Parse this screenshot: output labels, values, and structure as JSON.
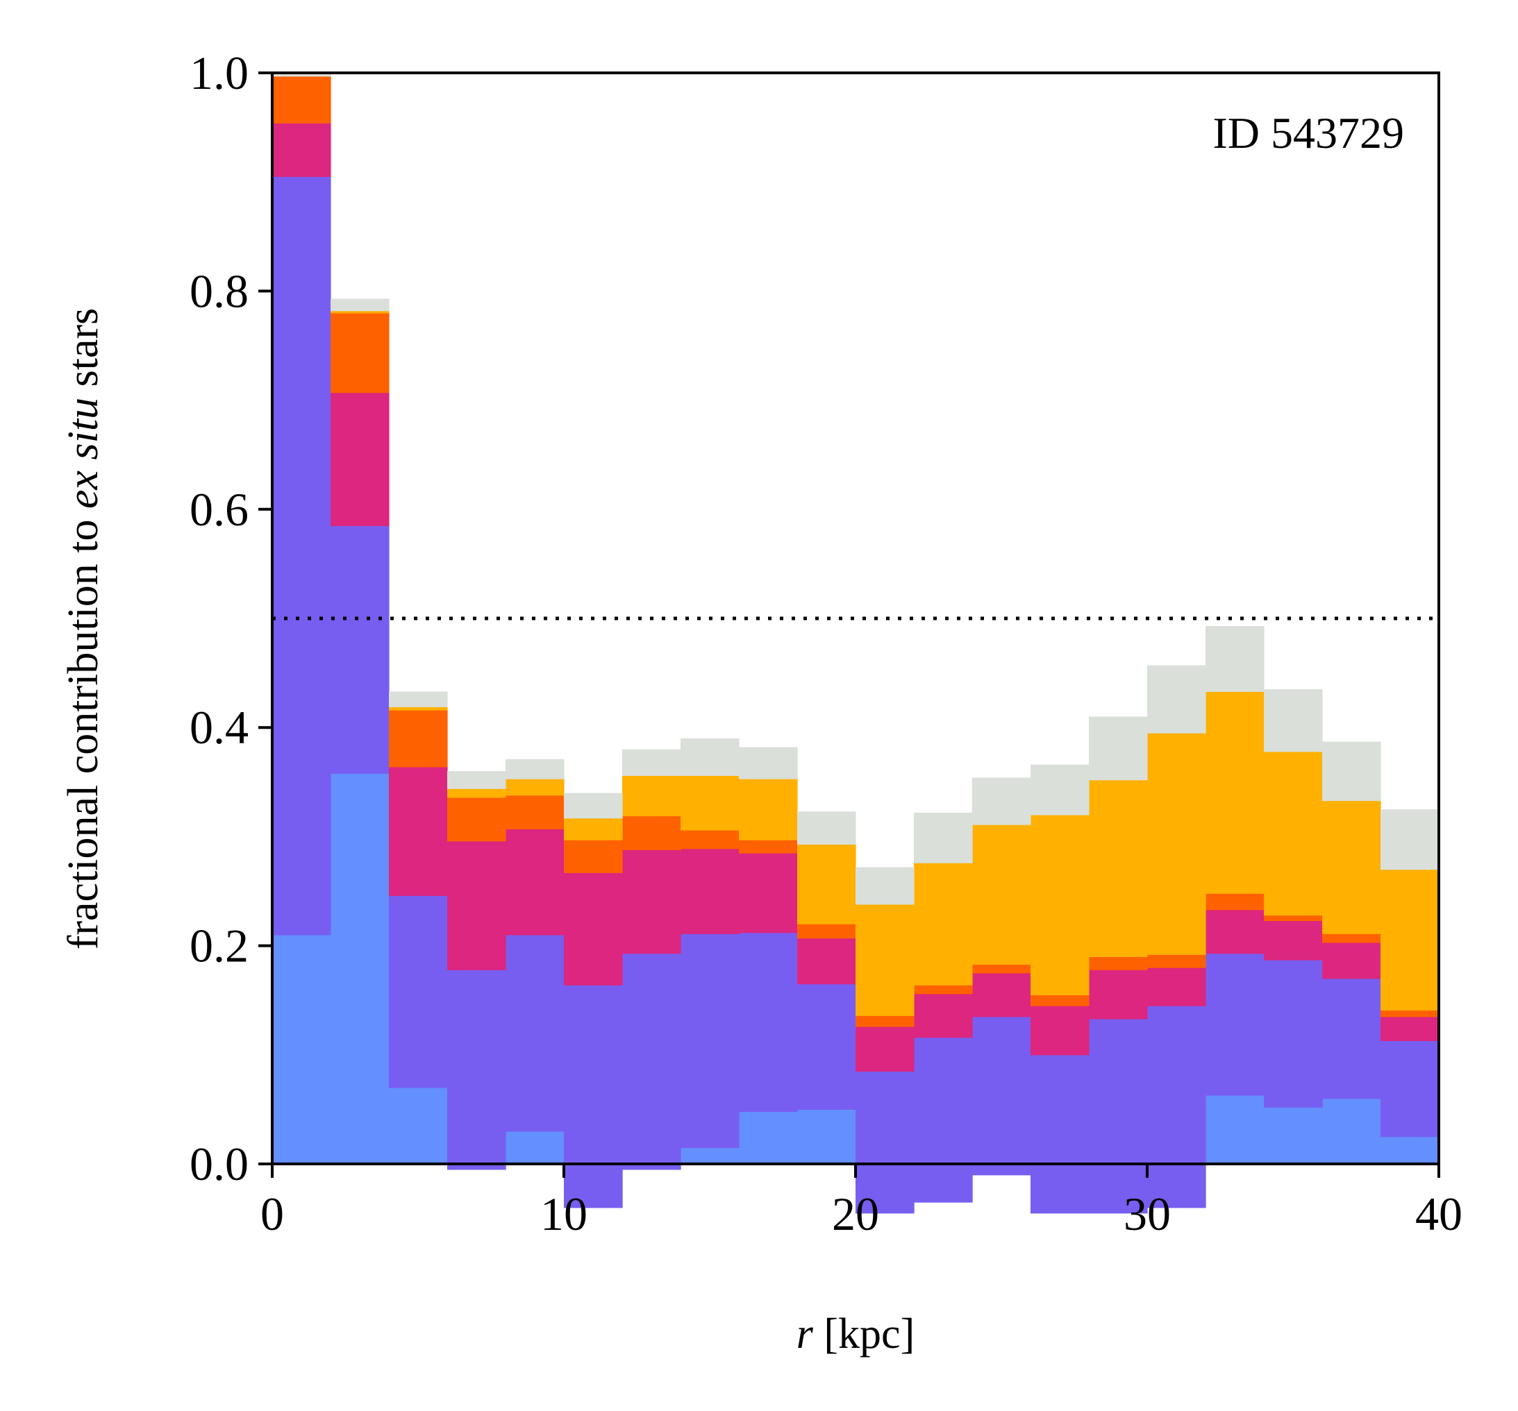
{
  "chart_data": {
    "type": "area",
    "stacking": "stacked-steps",
    "xlabel": {
      "italic": "r",
      "plain": " [kpc]"
    },
    "ylabel": {
      "before": "fractional contribution to ",
      "italic": "ex situ",
      "after": " stars"
    },
    "annotation": "ID 543729",
    "xlim": [
      0,
      40
    ],
    "ylim": [
      0,
      1.0
    ],
    "xticks": [
      "0",
      "10",
      "20",
      "30",
      "40"
    ],
    "yticks": [
      "0.0",
      "0.2",
      "0.4",
      "0.6",
      "0.8",
      "1.0"
    ],
    "reference_line": {
      "y": 0.5,
      "style": "dotted",
      "color": "#000000"
    },
    "bin_edges": [
      0,
      2,
      4,
      6,
      8,
      10,
      12,
      14,
      16,
      18,
      20,
      22,
      24,
      26,
      28,
      30,
      32,
      34,
      36,
      38,
      40
    ],
    "series": [
      {
        "color": "#648FFF",
        "values": [
          0.21,
          0.358,
          0.07,
          -0.005,
          0.03,
          -0.04,
          -0.005,
          0.015,
          0.048,
          0.05,
          -0.045,
          -0.035,
          -0.01,
          -0.045,
          -0.045,
          -0.04,
          0.063,
          0.052,
          0.06,
          0.025
        ]
      },
      {
        "color": "#785EF0",
        "values": [
          0.695,
          0.227,
          0.176,
          0.183,
          0.18,
          0.204,
          0.198,
          0.196,
          0.164,
          0.115,
          0.13,
          0.151,
          0.145,
          0.145,
          0.178,
          0.185,
          0.13,
          0.135,
          0.11,
          0.088
        ]
      },
      {
        "color": "#DC267F",
        "values": [
          0.049,
          0.122,
          0.118,
          0.118,
          0.097,
          0.103,
          0.095,
          0.078,
          0.073,
          0.042,
          0.041,
          0.04,
          0.04,
          0.045,
          0.045,
          0.035,
          0.04,
          0.036,
          0.033,
          0.022
        ]
      },
      {
        "color": "#FE6100",
        "values": [
          0.043,
          0.073,
          0.052,
          0.04,
          0.031,
          0.03,
          0.031,
          0.017,
          0.012,
          0.013,
          0.01,
          0.008,
          0.008,
          0.01,
          0.012,
          0.012,
          0.015,
          0.005,
          0.008,
          0.006
        ]
      },
      {
        "color": "#FFB000",
        "values": [
          0.0,
          0.002,
          0.003,
          0.008,
          0.015,
          0.02,
          0.037,
          0.05,
          0.056,
          0.073,
          0.102,
          0.112,
          0.128,
          0.165,
          0.162,
          0.203,
          0.185,
          0.15,
          0.122,
          0.129
        ]
      },
      {
        "color": "#DADFDA",
        "values": [
          0.003,
          0.011,
          0.014,
          0.016,
          0.018,
          0.023,
          0.024,
          0.034,
          0.029,
          0.03,
          0.034,
          0.046,
          0.043,
          0.046,
          0.058,
          0.062,
          0.06,
          0.057,
          0.054,
          0.055
        ]
      }
    ]
  }
}
